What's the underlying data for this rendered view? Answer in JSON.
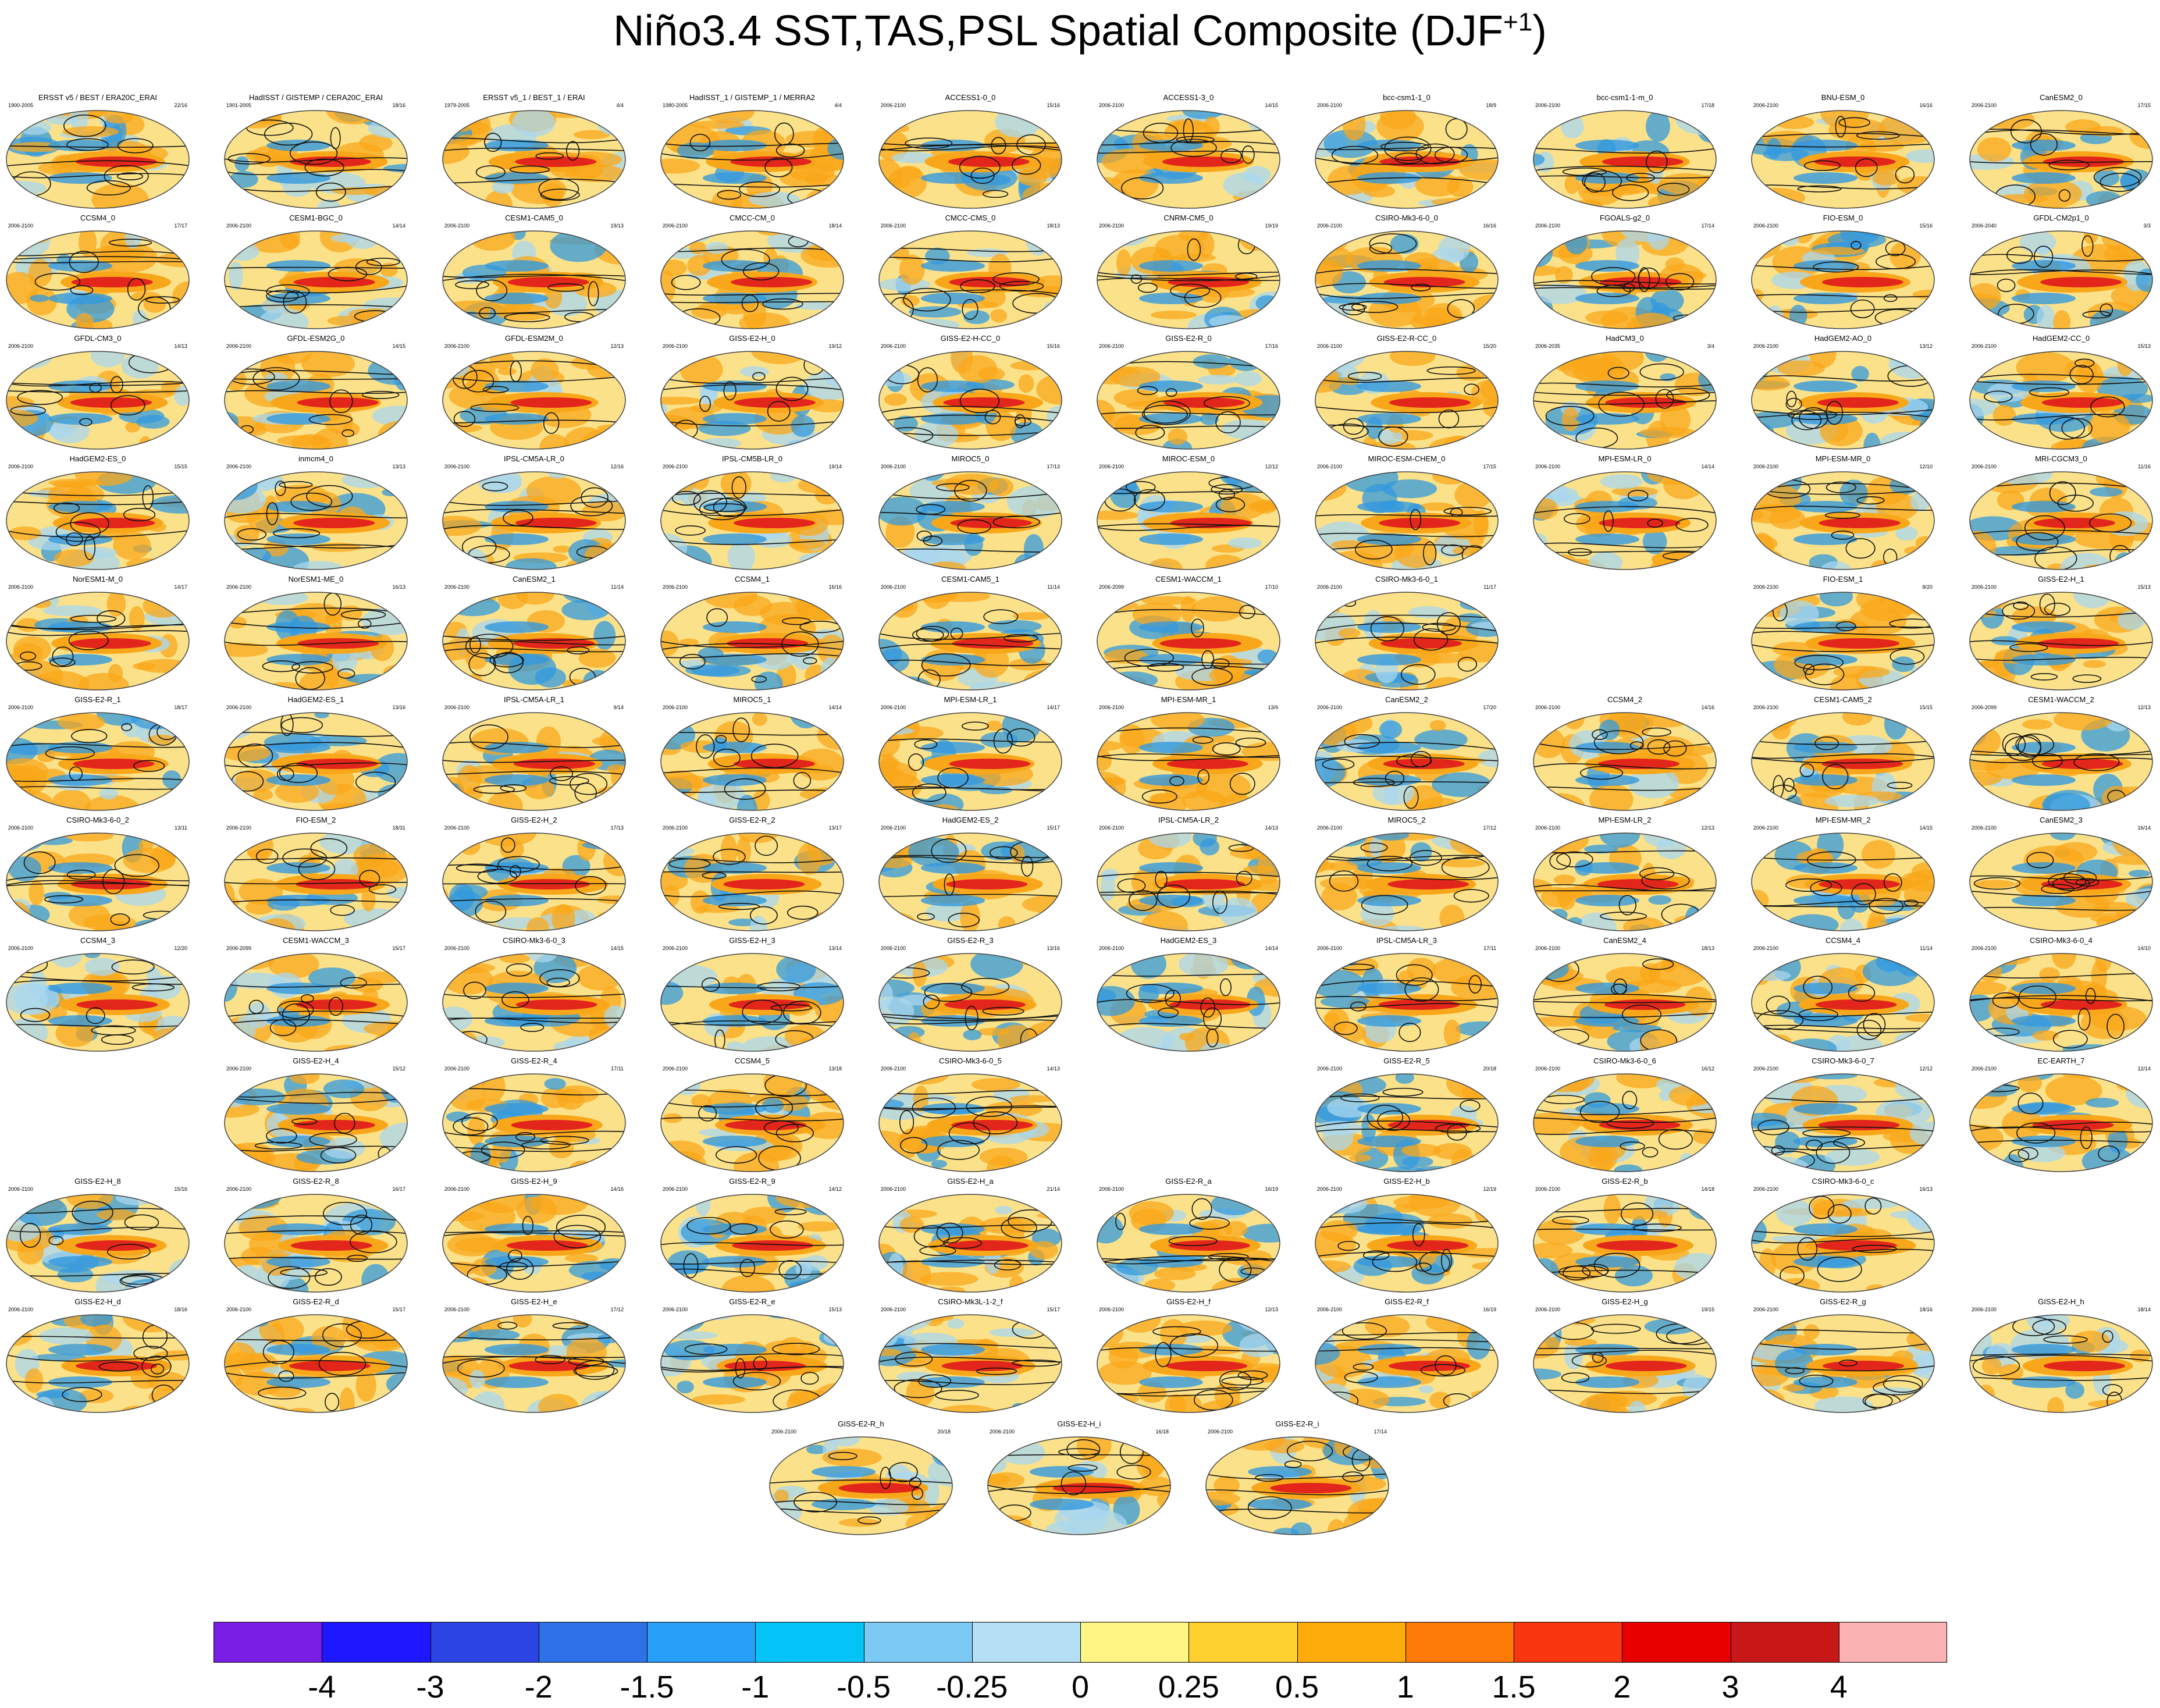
{
  "title": "Niño3.4 SST,TAS,PSL Spatial Composite (DJF",
  "title_sup": "+1",
  "map_colors": {
    "land_ocean_bg": "#fbe28a",
    "warm": "#f9a71a",
    "hot": "#e3261c",
    "cool": "#a9d7ef",
    "cold": "#3399dd",
    "contour": "#111111"
  },
  "colorbar": {
    "colors": [
      "#7a1ee6",
      "#1f17ff",
      "#2c44e3",
      "#2d72e8",
      "#279ef8",
      "#04c3f7",
      "#7cc9f3",
      "#b4dff4",
      "#fdf684",
      "#fdd030",
      "#fdaa0b",
      "#fd7a07",
      "#f83610",
      "#e80000",
      "#c71717",
      "#fbb2b2"
    ],
    "labels": [
      "-4",
      "-3",
      "-2",
      "-1.5",
      "-1",
      "-0.5",
      "-0.25",
      "0",
      "0.25",
      "0.5",
      "1",
      "1.5",
      "2",
      "3",
      "4"
    ]
  },
  "rows": [
    [
      {
        "title": "ERSST v5 / BEST / ERA20C_ERAI",
        "years": "1900-2005",
        "count": "22/16"
      },
      {
        "title": "HadISST / GISTEMP / CERA20C_ERAI",
        "years": "1901-2005",
        "count": "18/16"
      },
      {
        "title": "ERSST v5_1 / BEST_1 / ERAI",
        "years": "1979-2005",
        "count": "4/4"
      },
      {
        "title": "HadISST_1 / GISTEMP_1 / MERRA2",
        "years": "1980-2005",
        "count": "4/4"
      },
      {
        "title": "ACCESS1-0_0",
        "years": "2006-2100",
        "count": "15/16"
      },
      {
        "title": "ACCESS1-3_0",
        "years": "2006-2100",
        "count": "14/15"
      },
      {
        "title": "bcc-csm1-1_0",
        "years": "2006-2100",
        "count": "18/9"
      },
      {
        "title": "bcc-csm1-1-m_0",
        "years": "2006-2100",
        "count": "17/18"
      },
      {
        "title": "BNU-ESM_0",
        "years": "2006-2100",
        "count": "16/16"
      },
      {
        "title": "CanESM2_0",
        "years": "2006-2100",
        "count": "17/15"
      }
    ],
    [
      {
        "title": "CCSM4_0",
        "years": "2006-2100",
        "count": "17/17"
      },
      {
        "title": "CESM1-BGC_0",
        "years": "2006-2100",
        "count": "14/14"
      },
      {
        "title": "CESM1-CAM5_0",
        "years": "2006-2100",
        "count": "19/13"
      },
      {
        "title": "CMCC-CM_0",
        "years": "2006-2100",
        "count": "18/14"
      },
      {
        "title": "CMCC-CMS_0",
        "years": "2006-2100",
        "count": "18/13"
      },
      {
        "title": "CNRM-CM5_0",
        "years": "2006-2100",
        "count": "19/19"
      },
      {
        "title": "CSIRO-Mk3-6-0_0",
        "years": "2006-2100",
        "count": "16/16"
      },
      {
        "title": "FGOALS-g2_0",
        "years": "2006-2100",
        "count": "17/14"
      },
      {
        "title": "FIO-ESM_0",
        "years": "2006-2100",
        "count": "15/16"
      },
      {
        "title": "GFDL-CM2p1_0",
        "years": "2006-2040",
        "count": "3/3"
      }
    ],
    [
      {
        "title": "GFDL-CM3_0",
        "years": "2006-2100",
        "count": "14/13"
      },
      {
        "title": "GFDL-ESM2G_0",
        "years": "2006-2100",
        "count": "14/15"
      },
      {
        "title": "GFDL-ESM2M_0",
        "years": "2006-2100",
        "count": "12/13"
      },
      {
        "title": "GISS-E2-H_0",
        "years": "2006-2100",
        "count": "19/12"
      },
      {
        "title": "GISS-E2-H-CC_0",
        "years": "2006-2100",
        "count": "15/16"
      },
      {
        "title": "GISS-E2-R_0",
        "years": "2006-2100",
        "count": "17/16"
      },
      {
        "title": "GISS-E2-R-CC_0",
        "years": "2006-2100",
        "count": "15/20"
      },
      {
        "title": "HadCM3_0",
        "years": "2006-2035",
        "count": "3/4"
      },
      {
        "title": "HadGEM2-AO_0",
        "years": "2006-2100",
        "count": "13/12"
      },
      {
        "title": "HadGEM2-CC_0",
        "years": "2006-2100",
        "count": "15/13"
      }
    ],
    [
      {
        "title": "HadGEM2-ES_0",
        "years": "2006-2100",
        "count": "15/15"
      },
      {
        "title": "inmcm4_0",
        "years": "2006-2100",
        "count": "13/13"
      },
      {
        "title": "IPSL-CM5A-LR_0",
        "years": "2006-2100",
        "count": "12/16"
      },
      {
        "title": "IPSL-CM5B-LR_0",
        "years": "2006-2100",
        "count": "19/14"
      },
      {
        "title": "MIROC5_0",
        "years": "2006-2100",
        "count": "17/13"
      },
      {
        "title": "MIROC-ESM_0",
        "years": "2006-2100",
        "count": "12/12"
      },
      {
        "title": "MIROC-ESM-CHEM_0",
        "years": "2006-2100",
        "count": "17/15"
      },
      {
        "title": "MPI-ESM-LR_0",
        "years": "2006-2100",
        "count": "14/14"
      },
      {
        "title": "MPI-ESM-MR_0",
        "years": "2006-2100",
        "count": "12/10"
      },
      {
        "title": "MRI-CGCM3_0",
        "years": "2006-2100",
        "count": "11/16"
      }
    ],
    [
      {
        "title": "NorESM1-M_0",
        "years": "2006-2100",
        "count": "14/17"
      },
      {
        "title": "NorESM1-ME_0",
        "years": "2006-2100",
        "count": "16/13"
      },
      {
        "title": "CanESM2_1",
        "years": "2006-2100",
        "count": "11/14"
      },
      {
        "title": "CCSM4_1",
        "years": "2006-2100",
        "count": "16/16"
      },
      {
        "title": "CESM1-CAM5_1",
        "years": "2006-2100",
        "count": "11/14"
      },
      {
        "title": "CESM1-WACCM_1",
        "years": "2006-2099",
        "count": "17/10"
      },
      {
        "title": "CSIRO-Mk3-6-0_1",
        "years": "2006-2100",
        "count": "11/17"
      },
      null,
      {
        "title": "FIO-ESM_1",
        "years": "2006-2100",
        "count": "8/20"
      },
      {
        "title": "GISS-E2-H_1",
        "years": "2006-2100",
        "count": "15/13"
      }
    ],
    [
      {
        "title": "GISS-E2-R_1",
        "years": "2006-2100",
        "count": "18/17"
      },
      {
        "title": "HadGEM2-ES_1",
        "years": "2006-2100",
        "count": "13/16"
      },
      {
        "title": "IPSL-CM5A-LR_1",
        "years": "2006-2100",
        "count": "9/14"
      },
      {
        "title": "MIROC5_1",
        "years": "2006-2100",
        "count": "14/14"
      },
      {
        "title": "MPI-ESM-LR_1",
        "years": "2006-2100",
        "count": "14/17"
      },
      {
        "title": "MPI-ESM-MR_1",
        "years": "2006-2100",
        "count": "13/9"
      },
      {
        "title": "CanESM2_2",
        "years": "2006-2100",
        "count": "17/20"
      },
      {
        "title": "CCSM4_2",
        "years": "2006-2100",
        "count": "14/16"
      },
      {
        "title": "CESM1-CAM5_2",
        "years": "2006-2100",
        "count": "15/15"
      },
      {
        "title": "CESM1-WACCM_2",
        "years": "2006-2099",
        "count": "12/13"
      }
    ],
    [
      {
        "title": "CSIRO-Mk3-6-0_2",
        "years": "2006-2100",
        "count": "13/11"
      },
      {
        "title": "FIO-ESM_2",
        "years": "2006-2100",
        "count": "18/31"
      },
      {
        "title": "GISS-E2-H_2",
        "years": "2006-2100",
        "count": "17/13"
      },
      {
        "title": "GISS-E2-R_2",
        "years": "2006-2100",
        "count": "13/17"
      },
      {
        "title": "HadGEM2-ES_2",
        "years": "2006-2100",
        "count": "15/17"
      },
      {
        "title": "IPSL-CM5A-LR_2",
        "years": "2006-2100",
        "count": "14/13"
      },
      {
        "title": "MIROC5_2",
        "years": "2006-2100",
        "count": "17/12"
      },
      {
        "title": "MPI-ESM-LR_2",
        "years": "2006-2100",
        "count": "12/13"
      },
      {
        "title": "MPI-ESM-MR_2",
        "years": "2006-2100",
        "count": "14/15"
      },
      {
        "title": "CanESM2_3",
        "years": "2006-2100",
        "count": "16/14"
      }
    ],
    [
      {
        "title": "CCSM4_3",
        "years": "2006-2100",
        "count": "12/20"
      },
      {
        "title": "CESM1-WACCM_3",
        "years": "2006-2099",
        "count": "15/17"
      },
      {
        "title": "CSIRO-Mk3-6-0_3",
        "years": "2006-2100",
        "count": "14/15"
      },
      {
        "title": "GISS-E2-H_3",
        "years": "2006-2100",
        "count": "13/14"
      },
      {
        "title": "GISS-E2-R_3",
        "years": "2006-2100",
        "count": "13/16"
      },
      {
        "title": "HadGEM2-ES_3",
        "years": "2006-2100",
        "count": "14/14"
      },
      {
        "title": "IPSL-CM5A-LR_3",
        "years": "2006-2100",
        "count": "17/11"
      },
      {
        "title": "CanESM2_4",
        "years": "2006-2100",
        "count": "18/13"
      },
      {
        "title": "CCSM4_4",
        "years": "2006-2100",
        "count": "11/14"
      },
      {
        "title": "CSIRO-Mk3-6-0_4",
        "years": "2006-2100",
        "count": "14/10"
      }
    ],
    [
      null,
      {
        "title": "GISS-E2-H_4",
        "years": "2006-2100",
        "count": "15/12"
      },
      {
        "title": "GISS-E2-R_4",
        "years": "2006-2100",
        "count": "17/11"
      },
      {
        "title": "CCSM4_5",
        "years": "2006-2100",
        "count": "13/18"
      },
      {
        "title": "CSIRO-Mk3-6-0_5",
        "years": "2006-2100",
        "count": "14/13"
      },
      null,
      {
        "title": "GISS-E2-R_5",
        "years": "2006-2100",
        "count": "20/18"
      },
      {
        "title": "CSIRO-Mk3-6-0_6",
        "years": "2006-2100",
        "count": "16/12"
      },
      {
        "title": "CSIRO-Mk3-6-0_7",
        "years": "2006-2100",
        "count": "12/12"
      },
      {
        "title": "EC-EARTH_7",
        "years": "2006-2100",
        "count": "12/14"
      }
    ],
    [
      {
        "title": "GISS-E2-H_8",
        "years": "2006-2100",
        "count": "15/16"
      },
      {
        "title": "GISS-E2-R_8",
        "years": "2006-2100",
        "count": "16/17"
      },
      {
        "title": "GISS-E2-H_9",
        "years": "2006-2100",
        "count": "14/16"
      },
      {
        "title": "GISS-E2-R_9",
        "years": "2006-2100",
        "count": "14/12"
      },
      {
        "title": "GISS-E2-H_a",
        "years": "2006-2100",
        "count": "21/14"
      },
      {
        "title": "GISS-E2-R_a",
        "years": "2006-2100",
        "count": "16/19"
      },
      {
        "title": "GISS-E2-H_b",
        "years": "2006-2100",
        "count": "12/19"
      },
      {
        "title": "GISS-E2-R_b",
        "years": "2006-2100",
        "count": "14/18"
      },
      {
        "title": "CSIRO-Mk3-6-0_c",
        "years": "2006-2100",
        "count": "16/13"
      },
      null
    ],
    [
      {
        "title": "GISS-E2-H_d",
        "years": "2006-2100",
        "count": "18/16"
      },
      {
        "title": "GISS-E2-R_d",
        "years": "2006-2100",
        "count": "15/17"
      },
      {
        "title": "GISS-E2-H_e",
        "years": "2006-2100",
        "count": "17/12"
      },
      {
        "title": "GISS-E2-R_e",
        "years": "2006-2100",
        "count": "15/13"
      },
      {
        "title": "CSIRO-Mk3L-1-2_f",
        "years": "2006-2100",
        "count": "15/17"
      },
      {
        "title": "GISS-E2-H_f",
        "years": "2006-2100",
        "count": "12/13"
      },
      {
        "title": "GISS-E2-R_f",
        "years": "2006-2100",
        "count": "16/19"
      },
      {
        "title": "GISS-E2-H_g",
        "years": "2006-2100",
        "count": "19/15"
      },
      {
        "title": "GISS-E2-R_g",
        "years": "2006-2100",
        "count": "18/16"
      },
      {
        "title": "GISS-E2-H_h",
        "years": "2006-2100",
        "count": "18/14"
      }
    ]
  ],
  "last_row": [
    {
      "title": "GISS-E2-R_h",
      "years": "2006-2100",
      "count": "20/18"
    },
    {
      "title": "GISS-E2-H_i",
      "years": "2006-2100",
      "count": "16/18"
    },
    {
      "title": "GISS-E2-R_i",
      "years": "2006-2100",
      "count": "17/14"
    }
  ]
}
